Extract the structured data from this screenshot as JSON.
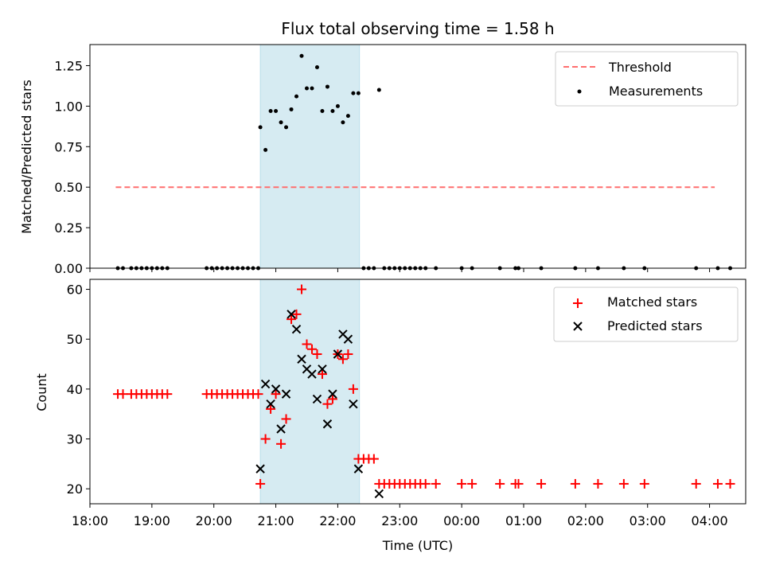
{
  "figure": {
    "title": "Flux total observing time = 1.58 h",
    "colors": {
      "threshold": "#ff6e6e",
      "matched": "#ff0000",
      "predicted": "#000000",
      "measurement": "#000000",
      "span_fill": "#add8e6"
    }
  },
  "chart_data": [
    {
      "type": "scatter",
      "title": "Flux total observing time = 1.58 h",
      "ylabel": "Matched/Predicted stars",
      "xlabel": "",
      "xlim": [
        "18:00",
        "04:35"
      ],
      "ylim": [
        0,
        1.38
      ],
      "yticks": [
        "0.00",
        "0.25",
        "0.50",
        "0.75",
        "1.00",
        "1.25"
      ],
      "highlight_span": [
        "20:45",
        "22:21"
      ],
      "legend": {
        "placement": "top-right",
        "entries": [
          "Threshold",
          "Measurements"
        ]
      },
      "threshold": {
        "name": "Threshold",
        "y": 0.5,
        "x_range": [
          "18:25",
          "04:05"
        ],
        "style": "dashed"
      },
      "series": [
        {
          "name": "Measurements",
          "points": [
            [
              "18:27",
              0
            ],
            [
              "18:32",
              0
            ],
            [
              "18:40",
              0
            ],
            [
              "18:45",
              0
            ],
            [
              "18:50",
              0
            ],
            [
              "18:55",
              0
            ],
            [
              "19:00",
              0
            ],
            [
              "19:05",
              0
            ],
            [
              "19:10",
              0
            ],
            [
              "19:15",
              0
            ],
            [
              "19:53",
              0
            ],
            [
              "19:58",
              0
            ],
            [
              "20:03",
              0
            ],
            [
              "20:08",
              0
            ],
            [
              "20:13",
              0
            ],
            [
              "20:18",
              0
            ],
            [
              "20:23",
              0
            ],
            [
              "20:28",
              0
            ],
            [
              "20:33",
              0
            ],
            [
              "20:38",
              0
            ],
            [
              "20:43",
              0
            ],
            [
              "20:45",
              0.87
            ],
            [
              "20:50",
              0.73
            ],
            [
              "20:55",
              0.97
            ],
            [
              "21:00",
              0.97
            ],
            [
              "21:05",
              0.9
            ],
            [
              "21:10",
              0.87
            ],
            [
              "21:15",
              0.98
            ],
            [
              "21:20",
              1.06
            ],
            [
              "21:25",
              1.31
            ],
            [
              "21:30",
              1.11
            ],
            [
              "21:35",
              1.11
            ],
            [
              "21:40",
              1.24
            ],
            [
              "21:45",
              0.97
            ],
            [
              "21:50",
              1.12
            ],
            [
              "21:55",
              0.97
            ],
            [
              "22:00",
              1.0
            ],
            [
              "22:05",
              0.9
            ],
            [
              "22:10",
              0.94
            ],
            [
              "22:15",
              1.08
            ],
            [
              "22:20",
              1.08
            ],
            [
              "22:25",
              0
            ],
            [
              "22:30",
              0
            ],
            [
              "22:35",
              0
            ],
            [
              "22:40",
              1.1
            ],
            [
              "22:45",
              0
            ],
            [
              "22:50",
              0
            ],
            [
              "22:55",
              0
            ],
            [
              "23:00",
              0
            ],
            [
              "23:05",
              0
            ],
            [
              "23:10",
              0
            ],
            [
              "23:15",
              0
            ],
            [
              "23:20",
              0
            ],
            [
              "23:25",
              0
            ],
            [
              "23:35",
              0
            ],
            [
              "24:00",
              0
            ],
            [
              "24:10",
              0
            ],
            [
              "24:37",
              0
            ],
            [
              "24:52",
              0
            ],
            [
              "24:55",
              0
            ],
            [
              "25:17",
              0
            ],
            [
              "25:50",
              0
            ],
            [
              "26:12",
              0
            ],
            [
              "26:37",
              0
            ],
            [
              "26:57",
              0
            ],
            [
              "27:47",
              0
            ],
            [
              "28:08",
              0
            ],
            [
              "28:20",
              0
            ]
          ]
        }
      ]
    },
    {
      "type": "scatter",
      "xlabel": "Time (UTC)",
      "ylabel": "Count",
      "xlim": [
        "18:00",
        "04:35"
      ],
      "ylim": [
        17,
        62
      ],
      "yticks": [
        "20",
        "30",
        "40",
        "50",
        "60"
      ],
      "xticks": [
        "18:00",
        "19:00",
        "20:00",
        "21:00",
        "22:00",
        "23:00",
        "00:00",
        "01:00",
        "02:00",
        "03:00",
        "04:00"
      ],
      "highlight_span": [
        "20:45",
        "22:21"
      ],
      "legend": {
        "placement": "top-right",
        "entries": [
          "Matched stars",
          "Predicted stars"
        ]
      },
      "series": [
        {
          "name": "Matched stars",
          "marker": "plus",
          "points": [
            [
              "18:27",
              39
            ],
            [
              "18:32",
              39
            ],
            [
              "18:40",
              39
            ],
            [
              "18:45",
              39
            ],
            [
              "18:50",
              39
            ],
            [
              "18:55",
              39
            ],
            [
              "19:00",
              39
            ],
            [
              "19:05",
              39
            ],
            [
              "19:10",
              39
            ],
            [
              "19:15",
              39
            ],
            [
              "19:53",
              39
            ],
            [
              "19:58",
              39
            ],
            [
              "20:03",
              39
            ],
            [
              "20:08",
              39
            ],
            [
              "20:13",
              39
            ],
            [
              "20:18",
              39
            ],
            [
              "20:23",
              39
            ],
            [
              "20:28",
              39
            ],
            [
              "20:33",
              39
            ],
            [
              "20:38",
              39
            ],
            [
              "20:43",
              39
            ],
            [
              "20:45",
              21
            ],
            [
              "20:50",
              30
            ],
            [
              "20:55",
              36
            ],
            [
              "21:00",
              39
            ],
            [
              "21:05",
              29
            ],
            [
              "21:10",
              34
            ],
            [
              "21:15",
              54
            ],
            [
              "21:20",
              55
            ],
            [
              "21:25",
              60
            ],
            [
              "21:30",
              49
            ],
            [
              "21:35",
              48
            ],
            [
              "21:40",
              47
            ],
            [
              "21:45",
              43
            ],
            [
              "21:50",
              37
            ],
            [
              "21:55",
              38
            ],
            [
              "22:00",
              47
            ],
            [
              "22:05",
              46
            ],
            [
              "22:10",
              47
            ],
            [
              "22:15",
              40
            ],
            [
              "22:20",
              26
            ],
            [
              "22:25",
              26
            ],
            [
              "22:30",
              26
            ],
            [
              "22:35",
              26
            ],
            [
              "22:40",
              21
            ],
            [
              "22:45",
              21
            ],
            [
              "22:50",
              21
            ],
            [
              "22:55",
              21
            ],
            [
              "23:00",
              21
            ],
            [
              "23:05",
              21
            ],
            [
              "23:10",
              21
            ],
            [
              "23:15",
              21
            ],
            [
              "23:20",
              21
            ],
            [
              "23:25",
              21
            ],
            [
              "23:35",
              21
            ],
            [
              "24:00",
              21
            ],
            [
              "24:10",
              21
            ],
            [
              "24:37",
              21
            ],
            [
              "24:52",
              21
            ],
            [
              "24:55",
              21
            ],
            [
              "25:17",
              21
            ],
            [
              "25:50",
              21
            ],
            [
              "26:12",
              21
            ],
            [
              "26:37",
              21
            ],
            [
              "26:57",
              21
            ],
            [
              "27:47",
              21
            ],
            [
              "28:08",
              21
            ],
            [
              "28:20",
              21
            ]
          ]
        },
        {
          "name": "Predicted stars",
          "marker": "x",
          "points": [
            [
              "20:45",
              24
            ],
            [
              "20:50",
              41
            ],
            [
              "20:55",
              37
            ],
            [
              "21:00",
              40
            ],
            [
              "21:05",
              32
            ],
            [
              "21:10",
              39
            ],
            [
              "21:15",
              55
            ],
            [
              "21:20",
              52
            ],
            [
              "21:25",
              46
            ],
            [
              "21:30",
              44
            ],
            [
              "21:35",
              43
            ],
            [
              "21:40",
              38
            ],
            [
              "21:45",
              44
            ],
            [
              "21:50",
              33
            ],
            [
              "21:55",
              39
            ],
            [
              "22:00",
              47
            ],
            [
              "22:05",
              51
            ],
            [
              "22:10",
              50
            ],
            [
              "22:15",
              37
            ],
            [
              "22:20",
              24
            ],
            [
              "22:40",
              19
            ]
          ]
        }
      ]
    }
  ]
}
